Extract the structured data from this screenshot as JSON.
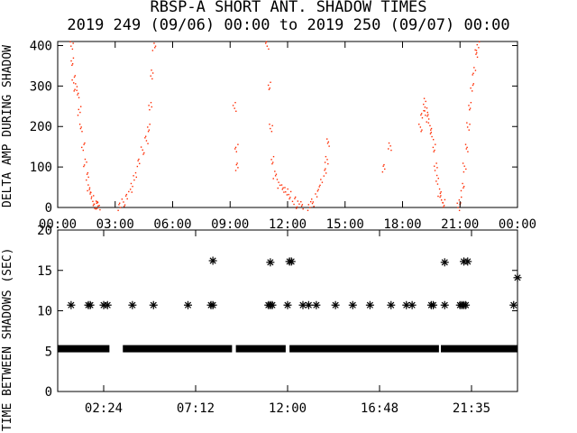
{
  "title": "RBSP-A SHORT ANT. SHADOW TIMES",
  "subtitle": "2019 249 (09/06) 00:00 to 2019 250 (09/07) 00:00",
  "chart_data": [
    {
      "type": "scatter",
      "ylabel": "DELTA AMP DURING SHADOW",
      "xlim_hours": [
        0,
        24
      ],
      "ylim": [
        0,
        410
      ],
      "y_ticks": [
        "0",
        "100",
        "200",
        "300",
        "400"
      ],
      "x_ticks": [
        "00:00",
        "03:00",
        "06:00",
        "09:00",
        "12:00",
        "15:00",
        "18:00",
        "21:00",
        "00:00"
      ],
      "point_color": "#ff2a00",
      "series": [
        {
          "points": [
            [
              0.7,
              400
            ],
            [
              0.75,
              360
            ],
            [
              0.8,
              320
            ],
            [
              0.9,
              300
            ],
            [
              1.0,
              280
            ],
            [
              1.1,
              240
            ],
            [
              1.2,
              200
            ],
            [
              1.3,
              150
            ],
            [
              1.4,
              110
            ],
            [
              1.5,
              80
            ],
            [
              1.6,
              50
            ],
            [
              1.7,
              35
            ],
            [
              1.8,
              20
            ],
            [
              1.9,
              10
            ],
            [
              2.0,
              5
            ],
            [
              2.1,
              3
            ],
            [
              3.2,
              5
            ],
            [
              3.4,
              15
            ],
            [
              3.6,
              30
            ],
            [
              3.8,
              50
            ],
            [
              4.0,
              80
            ],
            [
              4.2,
              110
            ],
            [
              4.4,
              140
            ],
            [
              4.6,
              170
            ],
            [
              4.7,
              200
            ],
            [
              4.8,
              250
            ],
            [
              4.9,
              330
            ],
            [
              5.0,
              400
            ],
            [
              10.9,
              400
            ],
            [
              11.0,
              300
            ],
            [
              11.1,
              200
            ],
            [
              11.2,
              120
            ],
            [
              11.3,
              80
            ],
            [
              11.5,
              60
            ],
            [
              11.7,
              50
            ],
            [
              11.9,
              40
            ],
            [
              12.1,
              30
            ],
            [
              12.3,
              20
            ],
            [
              12.5,
              10
            ],
            [
              12.7,
              5
            ],
            [
              13.1,
              5
            ],
            [
              13.3,
              15
            ],
            [
              13.5,
              35
            ],
            [
              13.7,
              60
            ],
            [
              13.9,
              90
            ],
            [
              14.0,
              120
            ],
            [
              14.1,
              160
            ],
            [
              9.2,
              250
            ],
            [
              9.3,
              150
            ],
            [
              9.3,
              100
            ],
            [
              17.3,
              150
            ],
            [
              17.0,
              100
            ],
            [
              18.9,
              200
            ],
            [
              19.0,
              230
            ],
            [
              19.1,
              260
            ],
            [
              19.2,
              240
            ],
            [
              19.3,
              220
            ],
            [
              19.4,
              200
            ],
            [
              19.5,
              180
            ],
            [
              19.6,
              150
            ],
            [
              19.7,
              100
            ],
            [
              19.8,
              70
            ],
            [
              19.9,
              40
            ],
            [
              20.0,
              20
            ],
            [
              20.1,
              10
            ],
            [
              20.9,
              5
            ],
            [
              21.0,
              20
            ],
            [
              21.1,
              50
            ],
            [
              21.2,
              100
            ],
            [
              21.3,
              150
            ],
            [
              21.4,
              200
            ],
            [
              21.5,
              250
            ],
            [
              21.6,
              300
            ],
            [
              21.7,
              340
            ],
            [
              21.8,
              380
            ],
            [
              21.9,
              400
            ]
          ]
        }
      ]
    },
    {
      "type": "scatter",
      "ylabel": "TIME BETWEEN SHADOWS (SEC)",
      "xlim_hours": [
        0,
        24
      ],
      "ylim": [
        0,
        20
      ],
      "y_ticks": [
        "0",
        "5",
        "10",
        "15",
        "20"
      ],
      "x_ticks": [
        "02:24",
        "07:12",
        "12:00",
        "16:48",
        "21:35"
      ],
      "marker": "asterisk",
      "baseline_value": 5.3,
      "baseline_segments": [
        [
          0.0,
          2.7
        ],
        [
          3.4,
          9.1
        ],
        [
          9.3,
          11.9
        ],
        [
          12.1,
          19.9
        ],
        [
          20.0,
          24.0
        ]
      ],
      "series": [
        {
          "points": [
            [
              0.7,
              10.7
            ],
            [
              1.6,
              10.7
            ],
            [
              1.7,
              10.7
            ],
            [
              2.4,
              10.7
            ],
            [
              2.6,
              10.7
            ],
            [
              3.9,
              10.7
            ],
            [
              5.0,
              10.7
            ],
            [
              6.8,
              10.7
            ],
            [
              8.0,
              10.7
            ],
            [
              8.1,
              10.7
            ],
            [
              8.1,
              16.2
            ],
            [
              11.0,
              10.7
            ],
            [
              11.1,
              10.7
            ],
            [
              11.2,
              10.7
            ],
            [
              11.1,
              16.0
            ],
            [
              12.0,
              10.7
            ],
            [
              12.1,
              16.1
            ],
            [
              12.2,
              16.1
            ],
            [
              12.8,
              10.7
            ],
            [
              13.1,
              10.7
            ],
            [
              13.5,
              10.7
            ],
            [
              14.5,
              10.7
            ],
            [
              15.4,
              10.7
            ],
            [
              16.3,
              10.7
            ],
            [
              17.4,
              10.7
            ],
            [
              18.2,
              10.7
            ],
            [
              18.5,
              10.7
            ],
            [
              19.5,
              10.7
            ],
            [
              19.6,
              10.7
            ],
            [
              20.2,
              10.7
            ],
            [
              20.2,
              16.0
            ],
            [
              21.0,
              10.7
            ],
            [
              21.1,
              10.7
            ],
            [
              21.2,
              10.7
            ],
            [
              21.3,
              10.7
            ],
            [
              21.2,
              16.1
            ],
            [
              21.4,
              16.1
            ],
            [
              23.8,
              10.7
            ],
            [
              24.0,
              14.1
            ]
          ]
        }
      ]
    }
  ]
}
